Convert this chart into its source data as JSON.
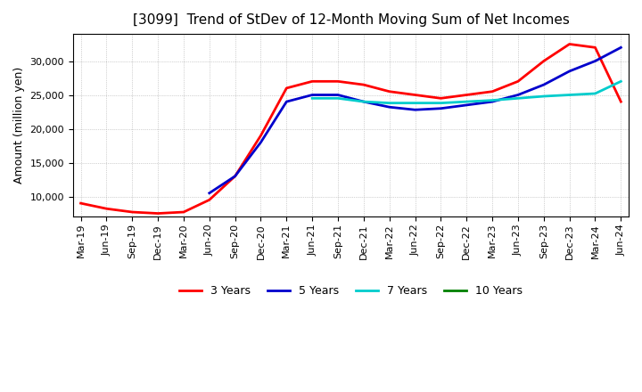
{
  "title": "[3099]  Trend of StDev of 12-Month Moving Sum of Net Incomes",
  "ylabel": "Amount (million yen)",
  "background_color": "#ffffff",
  "plot_bg_color": "#ffffff",
  "grid_color": "#aaaaaa",
  "ylim": [
    7000,
    34000
  ],
  "xlim": [
    -0.3,
    21.3
  ],
  "series": {
    "3 Years": {
      "color": "#ff0000",
      "x": [
        0,
        1,
        2,
        3,
        4,
        5,
        6,
        7,
        8,
        9,
        10,
        11,
        12,
        13,
        14,
        15,
        16,
        17,
        18,
        19,
        20,
        21
      ],
      "y": [
        9000,
        8200,
        7700,
        7500,
        7700,
        9500,
        13000,
        19000,
        26000,
        27000,
        27000,
        26500,
        25500,
        25000,
        24500,
        25000,
        25500,
        27000,
        30000,
        32500,
        32000,
        24000
      ]
    },
    "5 Years": {
      "color": "#0000cc",
      "x": [
        5,
        6,
        7,
        8,
        9,
        10,
        11,
        12,
        13,
        14,
        15,
        16,
        17,
        18,
        19,
        20,
        21
      ],
      "y": [
        10500,
        13000,
        18000,
        24000,
        25000,
        25000,
        24000,
        23200,
        22800,
        23000,
        23500,
        24000,
        25000,
        26500,
        28500,
        30000,
        32000
      ]
    },
    "7 Years": {
      "color": "#00cccc",
      "x": [
        9,
        10,
        11,
        12,
        13,
        14,
        15,
        16,
        17,
        18,
        19,
        20,
        21
      ],
      "y": [
        24500,
        24500,
        24000,
        23800,
        23800,
        23800,
        24000,
        24200,
        24500,
        24800,
        25000,
        25200,
        27000
      ]
    },
    "10 Years": {
      "color": "#008000",
      "x": [],
      "y": []
    }
  },
  "xtick_labels": [
    "Mar-19",
    "Jun-19",
    "Sep-19",
    "Dec-19",
    "Mar-20",
    "Jun-20",
    "Sep-20",
    "Dec-20",
    "Mar-21",
    "Jun-21",
    "Sep-21",
    "Dec-21",
    "Mar-22",
    "Jun-22",
    "Sep-22",
    "Dec-22",
    "Mar-23",
    "Jun-23",
    "Sep-23",
    "Dec-23",
    "Mar-24",
    "Jun-24"
  ],
  "yticks": [
    10000,
    15000,
    20000,
    25000,
    30000
  ],
  "legend_labels": [
    "3 Years",
    "5 Years",
    "7 Years",
    "10 Years"
  ],
  "legend_colors": [
    "#ff0000",
    "#0000cc",
    "#00cccc",
    "#008000"
  ]
}
